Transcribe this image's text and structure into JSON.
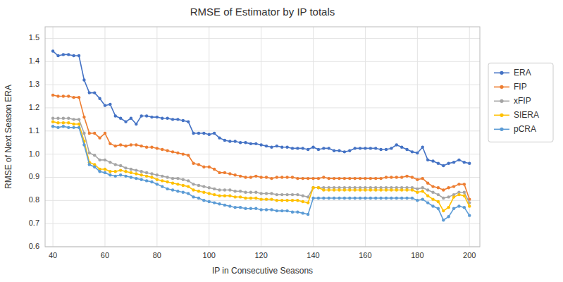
{
  "chart_data": {
    "type": "line",
    "title": "RMSE of Estimator by IP totals",
    "xlabel": "IP in Consecutive Seasons",
    "ylabel": "RMSE of Next Season ERA",
    "xlim": [
      37,
      204
    ],
    "ylim": [
      0.6,
      1.55
    ],
    "xticks": [
      40,
      60,
      80,
      100,
      120,
      140,
      160,
      180,
      200
    ],
    "yticks": [
      0.6,
      0.7,
      0.8,
      0.9,
      {
        "value": 1.0,
        "label": "1.0"
      },
      1.1,
      1.2,
      1.3,
      1.4,
      1.5
    ],
    "grid": true,
    "legend": "right",
    "marker": "circle",
    "x": [
      40,
      42,
      44,
      46,
      48,
      50,
      52,
      54,
      56,
      58,
      60,
      62,
      64,
      66,
      68,
      70,
      72,
      74,
      76,
      78,
      80,
      82,
      84,
      86,
      88,
      90,
      92,
      94,
      96,
      98,
      100,
      102,
      104,
      106,
      108,
      110,
      112,
      114,
      116,
      118,
      120,
      122,
      124,
      126,
      128,
      130,
      132,
      134,
      136,
      138,
      140,
      142,
      144,
      146,
      148,
      150,
      152,
      154,
      156,
      158,
      160,
      162,
      164,
      166,
      168,
      170,
      172,
      174,
      176,
      178,
      180,
      182,
      184,
      186,
      188,
      190,
      192,
      194,
      196,
      198,
      200
    ],
    "series": [
      {
        "name": "ERA",
        "color": "#4472C4",
        "values": [
          1.445,
          1.425,
          1.43,
          1.43,
          1.425,
          1.425,
          1.32,
          1.265,
          1.265,
          1.24,
          1.21,
          1.215,
          1.165,
          1.155,
          1.14,
          1.155,
          1.13,
          1.165,
          1.165,
          1.16,
          1.16,
          1.155,
          1.155,
          1.15,
          1.15,
          1.145,
          1.14,
          1.09,
          1.09,
          1.09,
          1.085,
          1.09,
          1.07,
          1.06,
          1.055,
          1.055,
          1.05,
          1.05,
          1.045,
          1.045,
          1.04,
          1.035,
          1.03,
          1.035,
          1.03,
          1.03,
          1.025,
          1.025,
          1.025,
          1.02,
          1.03,
          1.02,
          1.025,
          1.025,
          1.015,
          1.015,
          1.01,
          1.015,
          1.025,
          1.025,
          1.025,
          1.025,
          1.025,
          1.02,
          1.02,
          1.025,
          1.04,
          1.03,
          1.02,
          1.01,
          1.005,
          1.03,
          0.975,
          0.97,
          0.96,
          0.95,
          0.96,
          0.965,
          0.975,
          0.965,
          0.96
        ]
      },
      {
        "name": "FIP",
        "color": "#ED7D31",
        "values": [
          1.255,
          1.25,
          1.25,
          1.25,
          1.245,
          1.245,
          1.16,
          1.09,
          1.09,
          1.07,
          1.09,
          1.045,
          1.035,
          1.04,
          1.035,
          1.04,
          1.04,
          1.035,
          1.03,
          1.03,
          1.025,
          1.02,
          1.015,
          1.01,
          1.005,
          1.0,
          0.995,
          0.96,
          0.955,
          0.945,
          0.945,
          0.935,
          0.92,
          0.92,
          0.915,
          0.91,
          0.905,
          0.9,
          0.9,
          0.905,
          0.9,
          0.9,
          0.895,
          0.9,
          0.9,
          0.9,
          0.9,
          0.895,
          0.895,
          0.895,
          0.895,
          0.895,
          0.9,
          0.895,
          0.895,
          0.895,
          0.895,
          0.895,
          0.895,
          0.895,
          0.895,
          0.895,
          0.895,
          0.895,
          0.9,
          0.9,
          0.9,
          0.9,
          0.905,
          0.9,
          0.89,
          0.895,
          0.875,
          0.86,
          0.855,
          0.845,
          0.855,
          0.86,
          0.87,
          0.87,
          0.805
        ]
      },
      {
        "name": "xFIP",
        "color": "#A5A5A5",
        "values": [
          1.155,
          1.155,
          1.155,
          1.155,
          1.15,
          1.15,
          1.09,
          1.005,
          0.995,
          0.975,
          0.975,
          0.965,
          0.955,
          0.95,
          0.94,
          0.935,
          0.93,
          0.925,
          0.92,
          0.915,
          0.91,
          0.905,
          0.9,
          0.895,
          0.895,
          0.89,
          0.885,
          0.87,
          0.865,
          0.86,
          0.855,
          0.85,
          0.845,
          0.845,
          0.845,
          0.84,
          0.84,
          0.835,
          0.835,
          0.835,
          0.83,
          0.83,
          0.83,
          0.825,
          0.825,
          0.825,
          0.825,
          0.825,
          0.82,
          0.815,
          0.855,
          0.855,
          0.855,
          0.855,
          0.855,
          0.855,
          0.855,
          0.855,
          0.855,
          0.855,
          0.855,
          0.855,
          0.855,
          0.855,
          0.855,
          0.855,
          0.855,
          0.855,
          0.855,
          0.855,
          0.85,
          0.855,
          0.845,
          0.835,
          0.825,
          0.81,
          0.815,
          0.825,
          0.835,
          0.835,
          0.79
        ]
      },
      {
        "name": "SIERA",
        "color": "#FFC000",
        "values": [
          1.14,
          1.135,
          1.135,
          1.135,
          1.13,
          1.13,
          1.055,
          0.965,
          0.955,
          0.935,
          0.935,
          0.925,
          0.925,
          0.93,
          0.925,
          0.92,
          0.915,
          0.91,
          0.905,
          0.9,
          0.89,
          0.885,
          0.88,
          0.875,
          0.87,
          0.865,
          0.86,
          0.845,
          0.84,
          0.835,
          0.83,
          0.825,
          0.82,
          0.82,
          0.82,
          0.815,
          0.815,
          0.81,
          0.81,
          0.81,
          0.805,
          0.805,
          0.805,
          0.8,
          0.8,
          0.8,
          0.8,
          0.8,
          0.795,
          0.79,
          0.855,
          0.855,
          0.845,
          0.845,
          0.845,
          0.845,
          0.845,
          0.845,
          0.845,
          0.845,
          0.845,
          0.845,
          0.845,
          0.845,
          0.845,
          0.845,
          0.845,
          0.845,
          0.845,
          0.845,
          0.835,
          0.84,
          0.82,
          0.805,
          0.795,
          0.755,
          0.77,
          0.815,
          0.825,
          0.82,
          0.775
        ]
      },
      {
        "name": "pCRA",
        "color": "#5B9BD5",
        "values": [
          1.12,
          1.115,
          1.12,
          1.115,
          1.115,
          1.115,
          1.04,
          0.955,
          0.945,
          0.925,
          0.92,
          0.91,
          0.905,
          0.91,
          0.905,
          0.9,
          0.895,
          0.89,
          0.885,
          0.88,
          0.87,
          0.86,
          0.85,
          0.845,
          0.84,
          0.835,
          0.83,
          0.815,
          0.81,
          0.8,
          0.795,
          0.79,
          0.785,
          0.78,
          0.775,
          0.77,
          0.77,
          0.765,
          0.765,
          0.765,
          0.76,
          0.76,
          0.76,
          0.755,
          0.755,
          0.755,
          0.75,
          0.75,
          0.745,
          0.74,
          0.81,
          0.81,
          0.81,
          0.81,
          0.81,
          0.81,
          0.81,
          0.81,
          0.81,
          0.81,
          0.81,
          0.81,
          0.81,
          0.81,
          0.81,
          0.81,
          0.81,
          0.81,
          0.81,
          0.81,
          0.8,
          0.805,
          0.79,
          0.775,
          0.765,
          0.715,
          0.73,
          0.765,
          0.775,
          0.77,
          0.735
        ]
      }
    ]
  }
}
